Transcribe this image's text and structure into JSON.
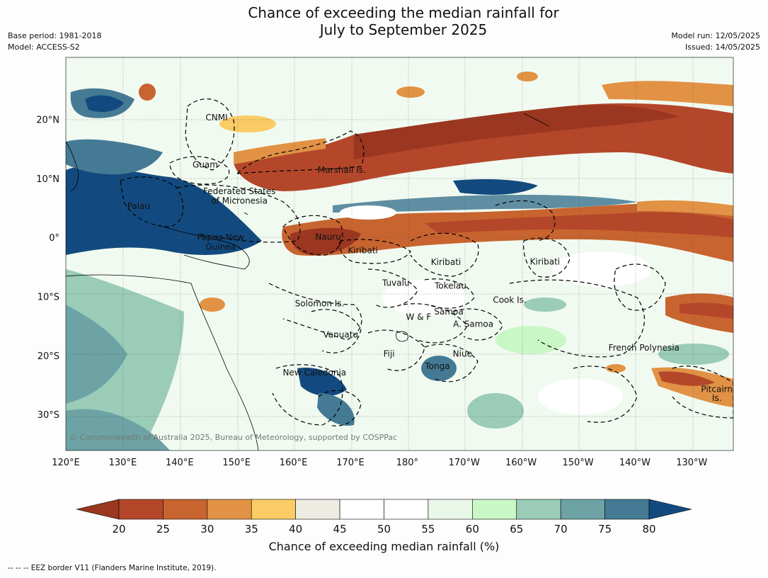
{
  "title": {
    "line1": "Chance of exceeding the median rainfall for",
    "line2": "July to September 2025"
  },
  "meta": {
    "base_period": "Base period: 1981-2018",
    "model": "Model: ACCESS-S2",
    "model_run": "Model run: 12/05/2025",
    "issued": "Issued: 14/05/2025"
  },
  "map": {
    "lon_labels": [
      "120°E",
      "130°E",
      "140°E",
      "150°E",
      "160°E",
      "170°E",
      "180°",
      "170°W",
      "160°W",
      "150°W",
      "140°W",
      "130°W"
    ],
    "lat_labels": [
      "20°N",
      "10°N",
      "0°",
      "10°S",
      "20°S",
      "30°S"
    ],
    "copyright": "© Commonwealth of Australia 2025, Bureau of Meteorology, supported by COSPPac",
    "regions": [
      {
        "name": "CNMI",
        "lon": 146.5,
        "lat": 20.3
      },
      {
        "name": "Guam",
        "lon": 144.5,
        "lat": 12.3
      },
      {
        "name": "Marshall Is.",
        "lon": 168.5,
        "lat": 11.4
      },
      {
        "name": "Federated States",
        "lon": 150.5,
        "lat": 7.8
      },
      {
        "name": "of Micronesia",
        "lon": 150.5,
        "lat": 6.2
      },
      {
        "name": "Palau",
        "lon": 132.8,
        "lat": 5.3
      },
      {
        "name": "Papua New",
        "lon": 147.2,
        "lat": 0.0
      },
      {
        "name": "Guinea",
        "lon": 147.2,
        "lat": -1.6
      },
      {
        "name": "Nauru",
        "lon": 166.1,
        "lat": 0.1
      },
      {
        "name": "Kiribati",
        "lon": 172.2,
        "lat": -2.2
      },
      {
        "name": "Kiribati",
        "lon": 186.8,
        "lat": -4.2
      },
      {
        "name": "Kiribati",
        "lon": 204.2,
        "lat": -4.1
      },
      {
        "name": "Tuvalu",
        "lon": 178.0,
        "lat": -7.7
      },
      {
        "name": "Tokelau",
        "lon": 187.6,
        "lat": -8.2
      },
      {
        "name": "Solomon Is.",
        "lon": 164.6,
        "lat": -11.2
      },
      {
        "name": "Cook Is.",
        "lon": 198.0,
        "lat": -10.6
      },
      {
        "name": "Samoa",
        "lon": 187.3,
        "lat": -12.6
      },
      {
        "name": "W & F",
        "lon": 182.0,
        "lat": -13.5
      },
      {
        "name": "A. Samoa",
        "lon": 191.6,
        "lat": -14.7
      },
      {
        "name": "Vanuatu",
        "lon": 168.3,
        "lat": -16.5
      },
      {
        "name": "French Polynesia",
        "lon": 221.6,
        "lat": -18.7
      },
      {
        "name": "Fiji",
        "lon": 176.8,
        "lat": -19.7
      },
      {
        "name": "Niue",
        "lon": 189.7,
        "lat": -19.7
      },
      {
        "name": "Tonga",
        "lon": 185.3,
        "lat": -21.8
      },
      {
        "name": "New Caledonia",
        "lon": 163.7,
        "lat": -22.9
      },
      {
        "name": "Pitcairn",
        "lon": 234.4,
        "lat": -25.7
      },
      {
        "name": "Is.",
        "lon": 234.4,
        "lat": -27.2
      }
    ]
  },
  "colorbar": {
    "ticks": [
      "20",
      "25",
      "30",
      "35",
      "40",
      "45",
      "50",
      "55",
      "60",
      "65",
      "70",
      "75",
      "80"
    ],
    "label": "Chance of exceeding median rainfall (%)",
    "colors": [
      "#9b3620",
      "#b4472a",
      "#c8642f",
      "#e19244",
      "#fbcb65",
      "#eeebe3",
      "#ffffff",
      "#ffffff",
      "#e9f7e8",
      "#caf7c6",
      "#9accb8",
      "#6da3a5",
      "#457a94",
      "#124a7f"
    ]
  },
  "footer": {
    "eez": "--  --  -- EEZ border V11 (Flanders Marine Institute, 2019)."
  }
}
